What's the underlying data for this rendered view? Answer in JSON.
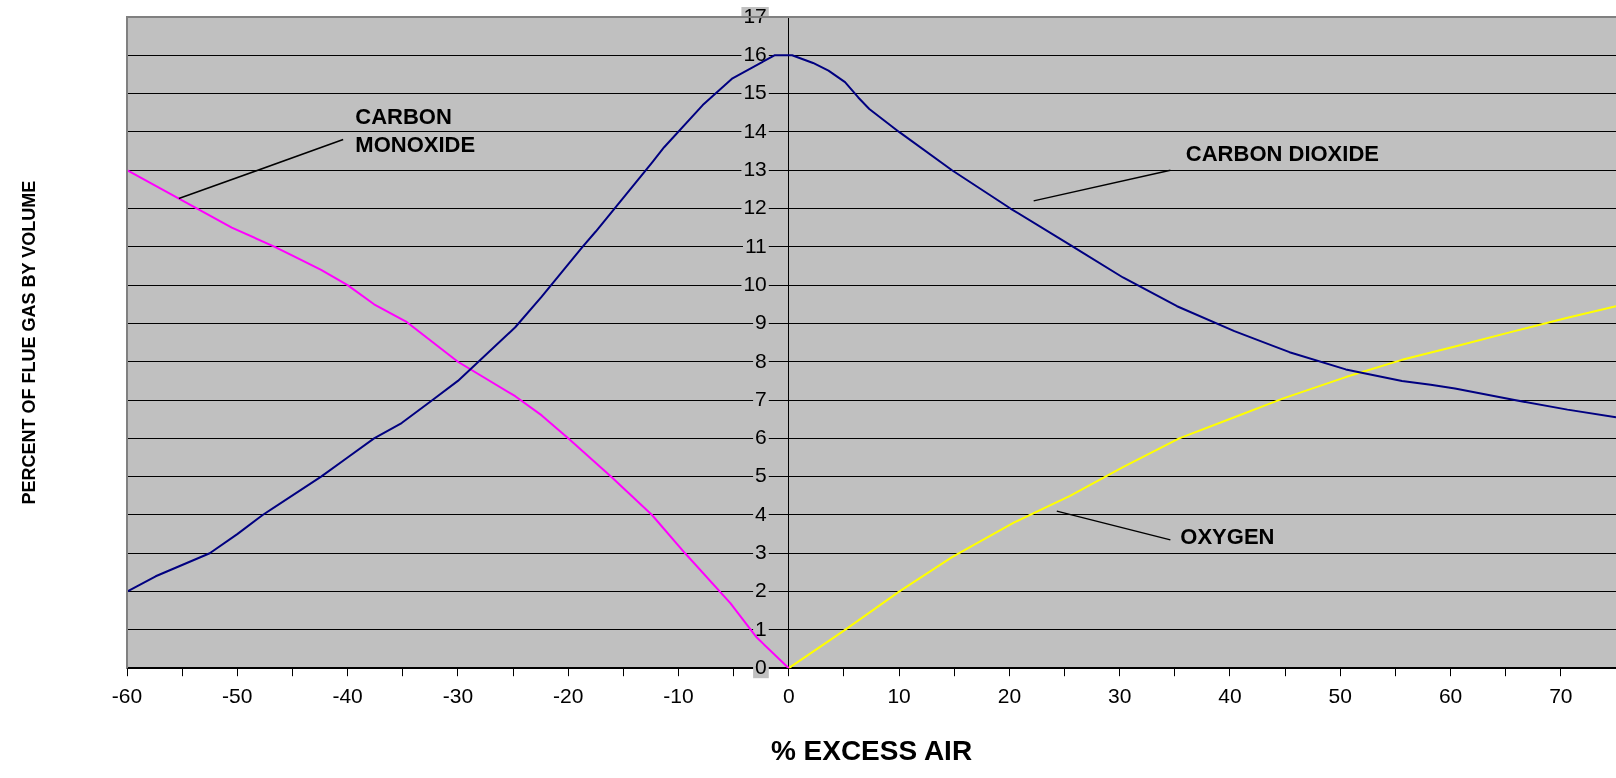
{
  "chart_data": {
    "type": "line",
    "xlabel": "% EXCESS AIR",
    "ylabel": "PERCENT OF FLUE GAS BY VOLUME",
    "xlim": [
      -60,
      75
    ],
    "ylim": [
      0,
      17
    ],
    "xticks": [
      -60,
      {
        "value": -55,
        "label": null
      },
      -50,
      {
        "value": -45,
        "label": null
      },
      -40,
      {
        "value": -35,
        "label": null
      },
      -30,
      {
        "value": -25,
        "label": null
      },
      -20,
      {
        "value": -15,
        "label": null
      },
      -10,
      {
        "value": -5,
        "label": null
      },
      0,
      {
        "value": 5,
        "label": null
      },
      10,
      {
        "value": 15,
        "label": null
      },
      20,
      {
        "value": 25,
        "label": null
      },
      30,
      {
        "value": 35,
        "label": null
      },
      40,
      {
        "value": 45,
        "label": null
      },
      50,
      {
        "value": 55,
        "label": null
      },
      60,
      {
        "value": 65,
        "label": null
      },
      70
    ],
    "yticks": [
      0,
      1,
      2,
      3,
      4,
      5,
      6,
      7,
      8,
      9,
      10,
      11,
      12,
      13,
      14,
      15,
      16,
      17
    ],
    "grid": "y",
    "marker": "none",
    "line_style": "solid",
    "legend": false,
    "series": [
      {
        "color": "#000080",
        "x": [
          -60,
          -57.4,
          -52.5,
          -50,
          -47.7,
          -42.4,
          -40,
          -37.6,
          -35.1,
          -32.3,
          -30,
          -24.8,
          -22.4,
          -18.7,
          -17.5,
          -12.4,
          -11.3,
          -7.8,
          -5.1,
          -1.3,
          0.3,
          2.2,
          3.6,
          5.1,
          6.3,
          7.3,
          10,
          14.8,
          20.1,
          25.5,
          30.3,
          35.2,
          40.4,
          45.4,
          50.5,
          55.6,
          58.2,
          60.4,
          65.8,
          70.6,
          75
        ],
        "values": [
          2,
          2.4,
          3,
          3.5,
          4,
          5,
          5.5,
          6,
          6.4,
          7,
          7.5,
          8.9,
          9.7,
          11,
          11.4,
          13.2,
          13.6,
          14.7,
          15.4,
          16,
          16,
          15.8,
          15.6,
          15.3,
          14.9,
          14.6,
          14,
          13,
          12,
          11.05,
          10.2,
          9.45,
          8.8,
          8.25,
          7.8,
          7.5,
          7.4,
          7.3,
          7,
          6.75,
          6.55
        ]
      },
      {
        "color": "#ff00ff",
        "x": [
          -60,
          -50.5,
          -46.6,
          -42.4,
          -40,
          -37.6,
          -34.7,
          -30,
          -24.8,
          -22.4,
          -20,
          -16.1,
          -12.4,
          -9.4,
          -5.3,
          -2.9,
          0
        ],
        "values": [
          13,
          11.5,
          11,
          10.4,
          10,
          9.5,
          9.05,
          8,
          7.1,
          6.6,
          6,
          5,
          4,
          3,
          1.7,
          0.8,
          0
        ]
      },
      {
        "color": "#ffff00",
        "x": [
          0,
          5.1,
          10,
          14.8,
          20.4,
          25.5,
          30.3,
          35.4,
          40.4,
          44.9,
          50.5,
          55.6,
          60.4,
          65.8,
          70.6,
          75
        ],
        "values": [
          0,
          1,
          2,
          2.9,
          3.8,
          4.5,
          5.25,
          6,
          6.55,
          7.05,
          7.6,
          8.05,
          8.4,
          8.8,
          9.15,
          9.45
        ]
      }
    ],
    "annotations": [
      {
        "text": "CARBON MONOXIDE",
        "x": -55.3,
        "y": 12.26
      },
      "CARBON DIOXIDE",
      "OXYGEN"
    ]
  }
}
